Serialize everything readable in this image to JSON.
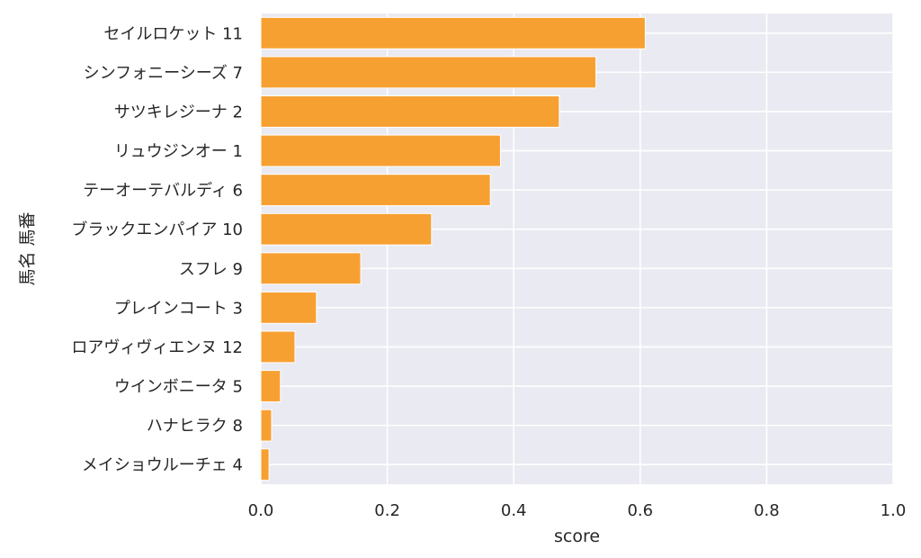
{
  "chart_data": {
    "type": "bar",
    "orientation": "horizontal",
    "categories": [
      "セイルロケット 11",
      "シンフォニーシーズ 7",
      "サツキレジーナ 2",
      "リュウジンオー 1",
      "テーオーテバルディ 6",
      "ブラックエンパイア 10",
      "スフレ 9",
      "プレインコート 3",
      "ロアヴィヴィエンヌ 12",
      "ウインボニータ 5",
      "ハナヒラク 8",
      "メイショウルーチェ 4"
    ],
    "values": [
      0.608,
      0.53,
      0.472,
      0.379,
      0.363,
      0.27,
      0.158,
      0.088,
      0.054,
      0.031,
      0.017,
      0.013
    ],
    "xlabel": "score",
    "ylabel": "馬名 馬番",
    "xlim": [
      0.0,
      1.0
    ],
    "xticks": [
      "0.0",
      "0.2",
      "0.4",
      "0.6",
      "0.8",
      "1.0"
    ],
    "grid": true,
    "colors": {
      "bar": "#f7a032",
      "bar_edge": "#ffffff",
      "plot_background": "#eaeaf2",
      "grid": "#ffffff",
      "text": "#262626"
    }
  }
}
